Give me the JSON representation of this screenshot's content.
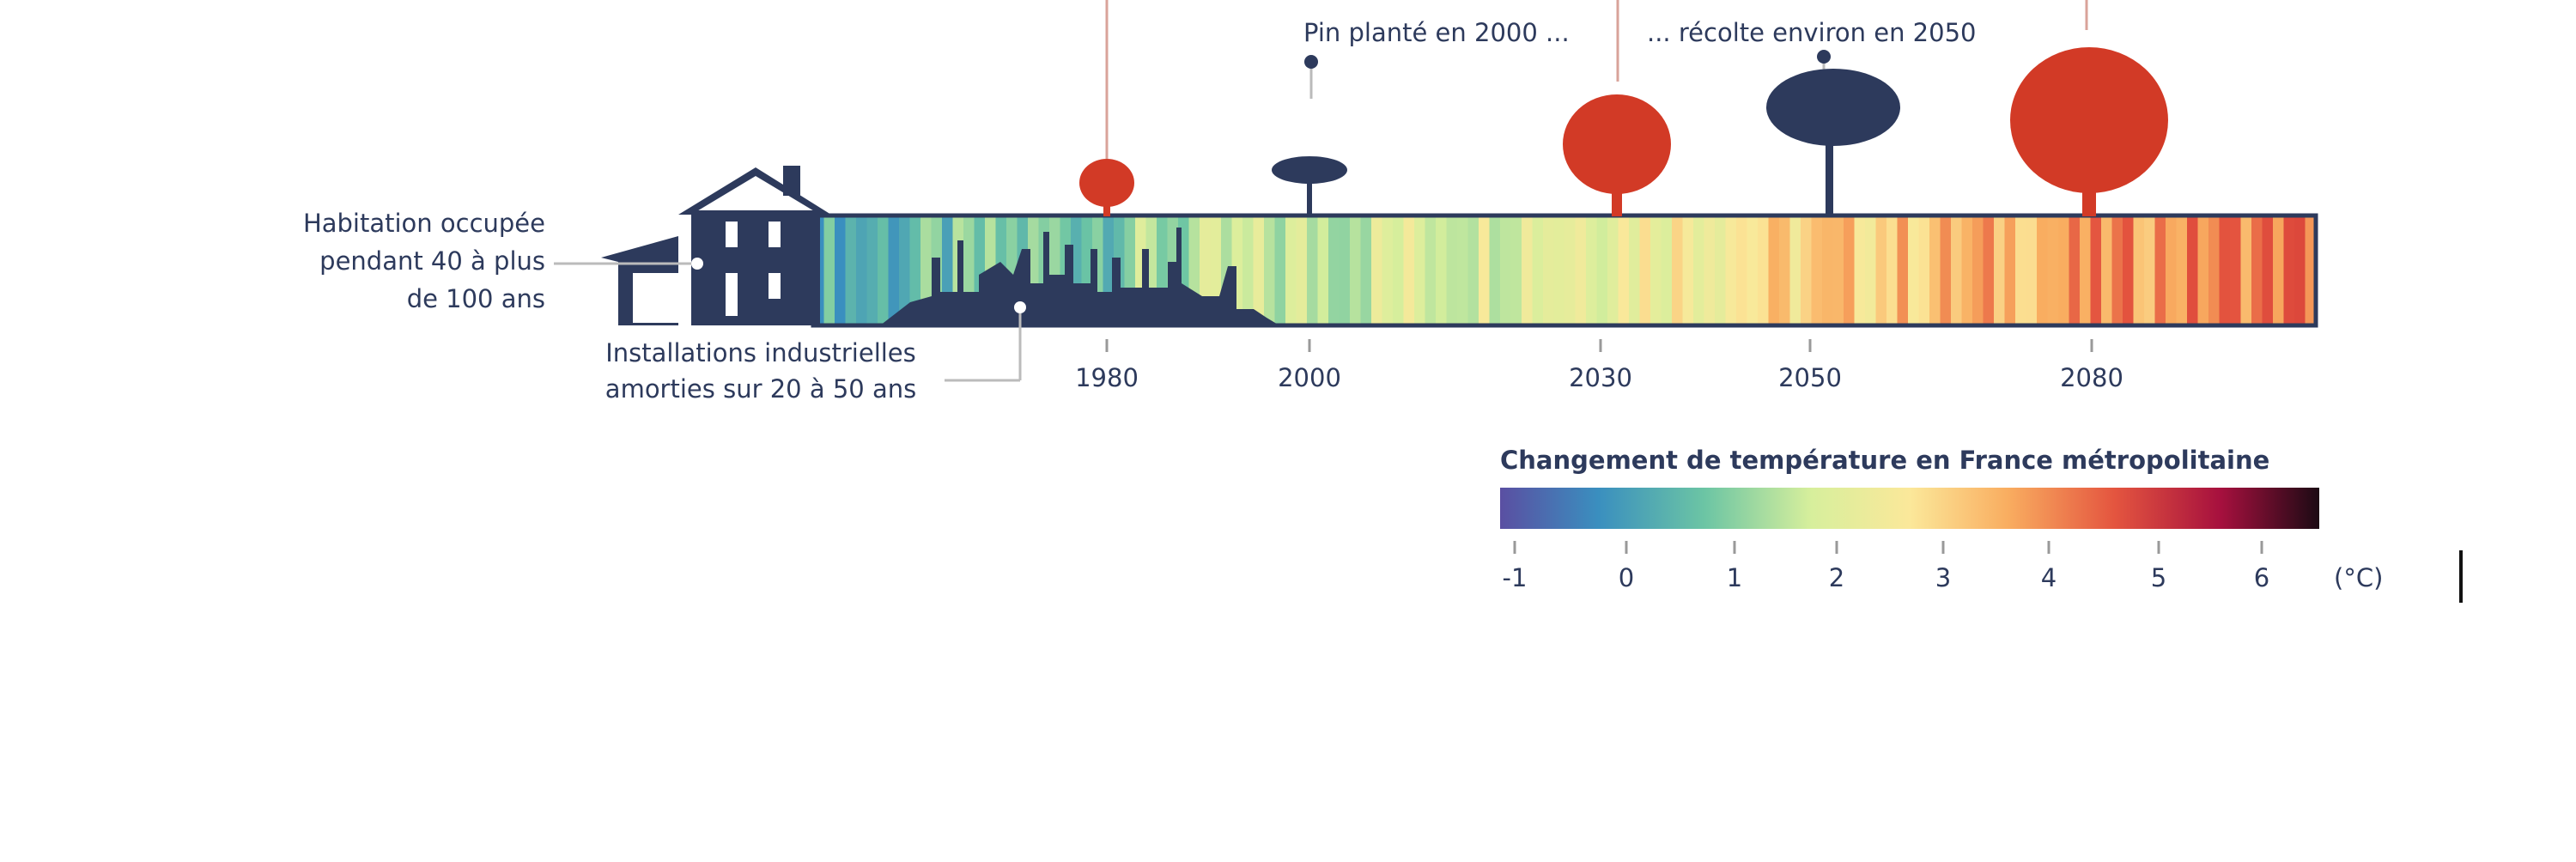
{
  "timeline": {
    "pine_planted": "Pin planté en 2000 ...",
    "pine_harvest": "... récolte environ en 2050",
    "housing": [
      "Habitation occupée",
      "pendant 40 à plus",
      "de 100 ans"
    ],
    "industry": [
      "Installations industrielles",
      "amorties sur 20 à 50 ans"
    ],
    "years": [
      "1980",
      "2000",
      "2030",
      "2050",
      "2080"
    ]
  },
  "legend": {
    "title": "Changement de température en France métropolitaine",
    "ticks": [
      "-1",
      "0",
      "1",
      "2",
      "3",
      "4",
      "5",
      "6"
    ],
    "unit": "(°C)"
  }
}
